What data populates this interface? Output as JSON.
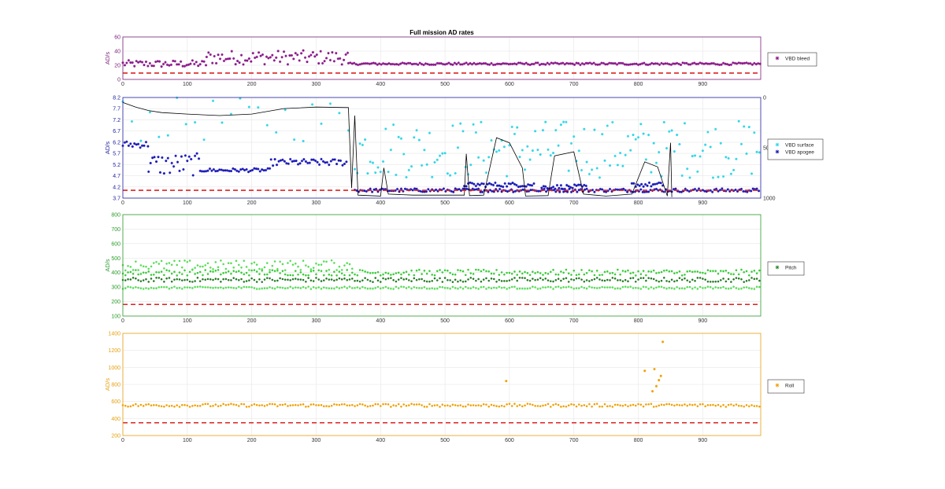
{
  "figure": {
    "title": "Full mission AD rates",
    "background": "#ffffff"
  },
  "chart_data": [
    {
      "id": "bleed",
      "type": "scatter",
      "title": "Full mission AD rates",
      "xlabel": "",
      "ylabel": "AD/s",
      "xlim": [
        0,
        990
      ],
      "ylim": [
        0,
        60
      ],
      "xticks": [
        0,
        100,
        200,
        300,
        400,
        500,
        600,
        700,
        800,
        900
      ],
      "yticks": [
        0,
        20,
        40,
        60
      ],
      "axis_color": "#7a1f7a",
      "grid": true,
      "legend_position": "right",
      "threshold": {
        "value": 9,
        "color": "#dd2222",
        "style": "dashed"
      },
      "series": [
        {
          "name": "VBD bleed",
          "marker": "asterisk",
          "color": "#8b1a8b",
          "x_range": [
            0,
            990
          ],
          "segments": [
            {
              "x": [
                0,
                130
              ],
              "base": 22,
              "spread": 5
            },
            {
              "x": [
                130,
                350
              ],
              "base": 31,
              "spread": 10
            },
            {
              "x": [
                350,
                990
              ],
              "base": 22,
              "spread": 1.5
            }
          ]
        }
      ]
    },
    {
      "id": "vbd",
      "type": "scatter",
      "xlabel": "",
      "ylabel": "AD/s",
      "xlim": [
        0,
        990
      ],
      "ylim": [
        3.7,
        8.2
      ],
      "xticks": [
        0,
        100,
        200,
        300,
        400,
        500,
        600,
        700,
        800,
        900
      ],
      "yticks": [
        3.7,
        4.2,
        4.7,
        5.2,
        5.7,
        6.2,
        6.7,
        7.2,
        7.7,
        8.2
      ],
      "y2lim": [
        0,
        1000
      ],
      "y2ticks": [
        0,
        500,
        1000
      ],
      "y2_reversed": true,
      "axis_color": "#2020a0",
      "grid": true,
      "legend_position": "right",
      "threshold": {
        "value": 4.05,
        "color": "#dd2222",
        "style": "dashed"
      },
      "series": [
        {
          "name": "VBD surface",
          "marker": "asterisk",
          "color": "#33d6e6",
          "segments": [
            {
              "x": [
                0,
                360
              ],
              "base": 7.2,
              "spread": 1.0,
              "density": "sparse"
            },
            {
              "x": [
                360,
                990
              ],
              "base": 5.9,
              "spread": 1.3,
              "density": "medium"
            }
          ]
        },
        {
          "name": "VBD apogee",
          "marker": "asterisk",
          "color": "#1a1ab8",
          "segments": [
            {
              "x": [
                0,
                40
              ],
              "base": 6.1,
              "spread": 0.15
            },
            {
              "x": [
                40,
                120
              ],
              "base": 5.2,
              "spread": 0.5
            },
            {
              "x": [
                120,
                230
              ],
              "base": 4.95,
              "spread": 0.08
            },
            {
              "x": [
                230,
                350
              ],
              "base": 5.3,
              "spread": 0.15
            },
            {
              "x": [
                360,
                990
              ],
              "base": 4.05,
              "spread": 0.08
            },
            {
              "x": [
                530,
                640
              ],
              "base": 4.3,
              "spread": 0.1
            },
            {
              "x": [
                650,
                720
              ],
              "base": 4.2,
              "spread": 0.1
            },
            {
              "x": [
                790,
                840
              ],
              "base": 4.3,
              "spread": 0.1
            }
          ]
        },
        {
          "name": "depth",
          "type": "line",
          "axis": "right",
          "color": "#000000",
          "points": [
            [
              0,
              50
            ],
            [
              20,
              95
            ],
            [
              40,
              130
            ],
            [
              60,
              150
            ],
            [
              100,
              165
            ],
            [
              150,
              180
            ],
            [
              200,
              165
            ],
            [
              250,
              110
            ],
            [
              300,
              95
            ],
            [
              350,
              100
            ],
            [
              355,
              900
            ],
            [
              360,
              180
            ],
            [
              365,
              970
            ],
            [
              400,
              980
            ],
            [
              405,
              700
            ],
            [
              412,
              960
            ],
            [
              450,
              970
            ],
            [
              530,
              970
            ],
            [
              533,
              560
            ],
            [
              538,
              975
            ],
            [
              560,
              970
            ],
            [
              580,
              400
            ],
            [
              600,
              450
            ],
            [
              620,
              700
            ],
            [
              625,
              980
            ],
            [
              660,
              975
            ],
            [
              670,
              580
            ],
            [
              700,
              540
            ],
            [
              715,
              960
            ],
            [
              750,
              980
            ],
            [
              790,
              960
            ],
            [
              810,
              640
            ],
            [
              830,
              690
            ],
            [
              845,
              980
            ],
            [
              850,
              450
            ],
            [
              852,
              990
            ]
          ]
        }
      ]
    },
    {
      "id": "pitch",
      "type": "scatter",
      "xlabel": "",
      "ylabel": "AD/s",
      "xlim": [
        0,
        990
      ],
      "ylim": [
        100,
        800
      ],
      "xticks": [
        0,
        100,
        200,
        300,
        400,
        500,
        600,
        700,
        800,
        900
      ],
      "yticks": [
        100,
        200,
        300,
        400,
        500,
        600,
        700,
        800
      ],
      "axis_color": "#2b9b2b",
      "grid": true,
      "legend_position": "right",
      "threshold": {
        "value": 180,
        "color": "#dd2222",
        "style": "dashed"
      },
      "series": [
        {
          "name": "Pitch",
          "marker": "asterisk",
          "color": "#2e8b2e",
          "bands": [
            {
              "base": 350,
              "spread": 15,
              "color": "#237a23"
            },
            {
              "base": 400,
              "spread": 20,
              "color": "#34cc34"
            },
            {
              "base": 295,
              "spread": 8,
              "color": "#55dd55"
            },
            {
              "base": 450,
              "spread": 35,
              "color": "#55dd55",
              "x": [
                0,
                360
              ]
            }
          ]
        }
      ]
    },
    {
      "id": "roll",
      "type": "scatter",
      "xlabel": "",
      "ylabel": "AD/s",
      "xlim": [
        0,
        990
      ],
      "ylim": [
        200,
        1400
      ],
      "xticks": [
        0,
        100,
        200,
        300,
        400,
        500,
        600,
        700,
        800,
        900
      ],
      "yticks": [
        200,
        400,
        600,
        800,
        1000,
        1200,
        1400
      ],
      "axis_color": "#e6a010",
      "grid": true,
      "legend_position": "right",
      "threshold": {
        "value": 350,
        "color": "#dd2222",
        "style": "dashed"
      },
      "series": [
        {
          "name": "Roll",
          "marker": "asterisk",
          "color": "#f0a000",
          "bands": [
            {
              "base": 555,
              "spread": 18,
              "color": "#f0a000"
            }
          ],
          "outliers": [
            [
              595,
              840
            ],
            [
              810,
              960
            ],
            [
              825,
              980
            ],
            [
              835,
              900
            ],
            [
              838,
              1300
            ],
            [
              828,
              780
            ],
            [
              822,
              720
            ],
            [
              832,
              850
            ]
          ]
        }
      ]
    }
  ]
}
